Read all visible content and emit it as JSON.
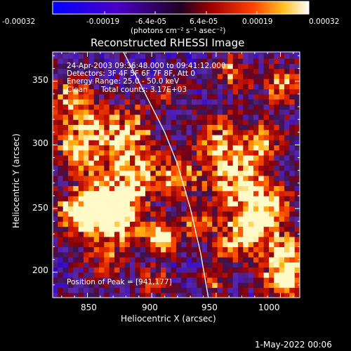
{
  "chart_data": {
    "type": "heatmap",
    "title": "Reconstructed RHESSI Image",
    "xlabel": "Heliocentric X (arcsec)",
    "ylabel": "Heliocentric Y (arcsec)",
    "xlim": [
      823,
      1015
    ],
    "ylim": [
      180,
      373
    ],
    "x_ticks": [
      850,
      900,
      950,
      1000
    ],
    "y_ticks": [
      200,
      250,
      300,
      350
    ],
    "x_tick_labels": [
      "850",
      "900",
      "950",
      "1000"
    ],
    "y_tick_labels": [
      "200",
      "250",
      "300",
      "350"
    ],
    "colorbar": {
      "unit_label": "(photons cm⁻² s⁻¹ asec⁻²)",
      "range": [
        -0.00032,
        0.00032
      ],
      "tick_values": [
        -0.00032,
        -0.00019,
        -6.4e-05,
        6.4e-05,
        0.00019,
        0.00032
      ],
      "tick_labels": [
        "-0.00032",
        "-0.00019",
        "-6.4e-05",
        "6.4e-05",
        "0.00019",
        "0.00032"
      ]
    },
    "annotations": {
      "time_range": "24-Apr-2003 09:36:48.000 to 09:41:12.000",
      "detectors": "Detectors: 3F 4F 5F 6F 7F 8F, Att 0",
      "energy_range": "Energy Range: 25.0 - 50.0 keV",
      "algorithm": "Clean",
      "total_counts": "Total counts: 3.17E+03",
      "peak_position": "Position of Peak = [941,177]"
    },
    "peak": {
      "x": 941,
      "y": 177
    },
    "limb_curve": [
      [
        878,
        373
      ],
      [
        895,
        340
      ],
      [
        910,
        310
      ],
      [
        920,
        285
      ],
      [
        930,
        250
      ],
      [
        938,
        215
      ],
      [
        944,
        180
      ]
    ]
  },
  "footer": {
    "date": "1-May-2022 00:06"
  }
}
